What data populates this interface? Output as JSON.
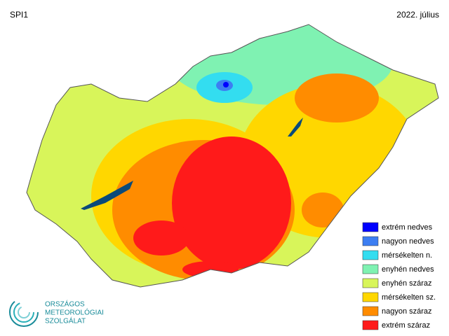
{
  "header": {
    "title": "SPI1",
    "date": "2022. július"
  },
  "legend": [
    {
      "label": "extrém nedves",
      "color": "#0000ff"
    },
    {
      "label": "nagyon nedves",
      "color": "#3d7ef2"
    },
    {
      "label": "mérsékelten n.",
      "color": "#33ddf0"
    },
    {
      "label": "enyhén nedves",
      "color": "#7ff2b2"
    },
    {
      "label": "enyhén száraz",
      "color": "#d8f55a"
    },
    {
      "label": "mérsékelten sz.",
      "color": "#ffd700"
    },
    {
      "label": "nagyon száraz",
      "color": "#ff8c00"
    },
    {
      "label": "extrém száraz",
      "color": "#ff1a1a"
    }
  ],
  "logo": {
    "lines": [
      "ORSZÁGOS",
      "METEOROLÓGIAI",
      "SZOLGÁLAT"
    ]
  }
}
